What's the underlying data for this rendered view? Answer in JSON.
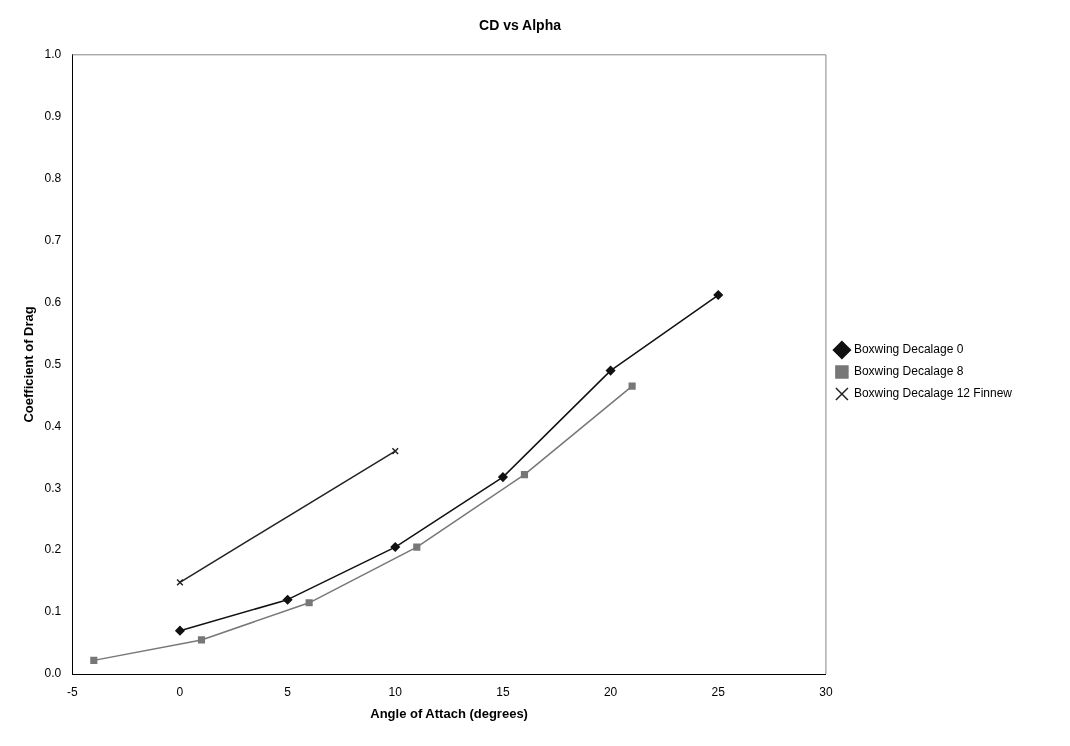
{
  "chart_data": {
    "type": "line",
    "title": "CD vs Alpha",
    "xlabel": "Angle of Attach (degrees)",
    "ylabel": "Coefficient of Drag",
    "xlim": [
      -5,
      30
    ],
    "xticks": [
      -5,
      0,
      5,
      10,
      15,
      20,
      25,
      30
    ],
    "ylim": [
      0,
      1
    ],
    "yticks": [
      {
        "value": 0,
        "label": "0.0"
      },
      {
        "value": 0.1,
        "label": "0.1"
      },
      {
        "value": 0.2,
        "label": "0.2"
      },
      {
        "value": 0.3,
        "label": "0.3"
      },
      {
        "value": 0.4,
        "label": "0.4"
      },
      {
        "value": 0.5,
        "label": "0.5"
      },
      {
        "value": 0.6,
        "label": "0.6"
      },
      {
        "value": 0.7,
        "label": "0.7"
      },
      {
        "value": 0.8,
        "label": "0.8"
      },
      {
        "value": 0.9,
        "label": "0.9"
      },
      {
        "value": 1,
        "label": "1.0"
      }
    ],
    "grid": false,
    "legend": "right",
    "line_style": "solid",
    "series": [
      {
        "name": "Boxwing Decalage 0",
        "color": "#111111",
        "marker": "diamond",
        "x": [
          0,
          5,
          10,
          15,
          20,
          25
        ],
        "values": [
          0.07,
          0.12,
          0.205,
          0.318,
          0.49,
          0.612
        ]
      },
      {
        "name": "Boxwing Decalage 8",
        "color": "#777777",
        "marker": "square",
        "x": [
          -4,
          1,
          6,
          11,
          16,
          21
        ],
        "values": [
          0.022,
          0.055,
          0.115,
          0.205,
          0.322,
          0.465
        ]
      },
      {
        "name": "Boxwing Decalage 12 Finnew",
        "color": "#222222",
        "marker": "cross",
        "x": [
          0,
          10
        ],
        "values": [
          0.148,
          0.36
        ]
      }
    ]
  }
}
